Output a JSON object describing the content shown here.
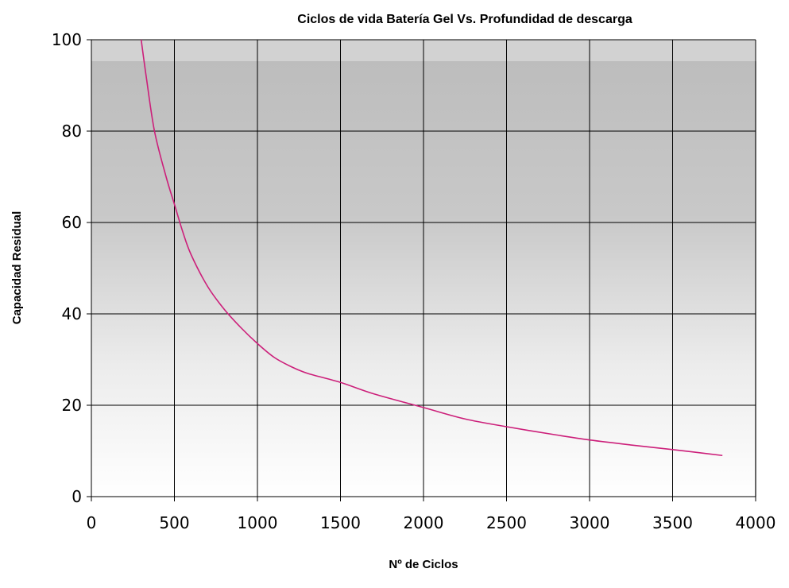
{
  "chart_data": {
    "type": "line",
    "title": "Ciclos de vida Batería Gel Vs. Profundidad de descarga",
    "xlabel": "Nº de Ciclos",
    "ylabel": "Capacidad Residual",
    "xlim": [
      0,
      4000
    ],
    "ylim": [
      0,
      100
    ],
    "xticks": [
      0,
      500,
      1000,
      1500,
      2000,
      2500,
      3000,
      3500,
      4000
    ],
    "yticks": [
      0,
      20,
      40,
      60,
      80,
      100
    ],
    "grid": true,
    "legend": "none",
    "colors": {
      "line": "#cc1f7a",
      "grid": "#000000",
      "plot_bg_top": "#c0c0c0",
      "plot_bg_bottom": "#ffffff"
    },
    "series": [
      {
        "x": [
          300,
          330,
          380,
          450,
          500,
          550,
          600,
          700,
          800,
          900,
          1000,
          1100,
          1200,
          1300,
          1500,
          1700,
          2000,
          2250,
          2500,
          2800,
          3000,
          3250,
          3500,
          3800
        ],
        "values": [
          100,
          92,
          80,
          70,
          64,
          58,
          53,
          46,
          41,
          37,
          33.5,
          30.5,
          28.5,
          27,
          25,
          22.5,
          19.5,
          17,
          15.3,
          13.5,
          12.4,
          11.3,
          10.3,
          9
        ]
      }
    ]
  }
}
